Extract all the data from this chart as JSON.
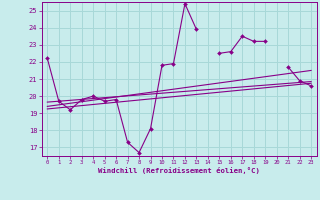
{
  "xlabel": "Windchill (Refroidissement éolien,°C)",
  "x_ticks": [
    0,
    1,
    2,
    3,
    4,
    5,
    6,
    7,
    8,
    9,
    10,
    11,
    12,
    13,
    14,
    15,
    16,
    17,
    18,
    19,
    20,
    21,
    22,
    23
  ],
  "ylim": [
    16.5,
    25.5
  ],
  "yticks": [
    17,
    18,
    19,
    20,
    21,
    22,
    23,
    24,
    25
  ],
  "bg_color": "#c8ecec",
  "grid_color": "#a8d8d8",
  "line_color": "#880088",
  "main_data_y": [
    22.2,
    19.7,
    19.2,
    19.8,
    20.0,
    19.7,
    19.8,
    17.3,
    16.7,
    18.1,
    21.8,
    21.9,
    25.4,
    23.9,
    null,
    22.5,
    22.6,
    23.5,
    23.2,
    23.2,
    null,
    21.7,
    20.9,
    20.6
  ],
  "trend1_y": [
    19.65,
    20.85
  ],
  "trend2_y": [
    19.4,
    21.5
  ],
  "trend3_y": [
    19.25,
    20.75
  ]
}
